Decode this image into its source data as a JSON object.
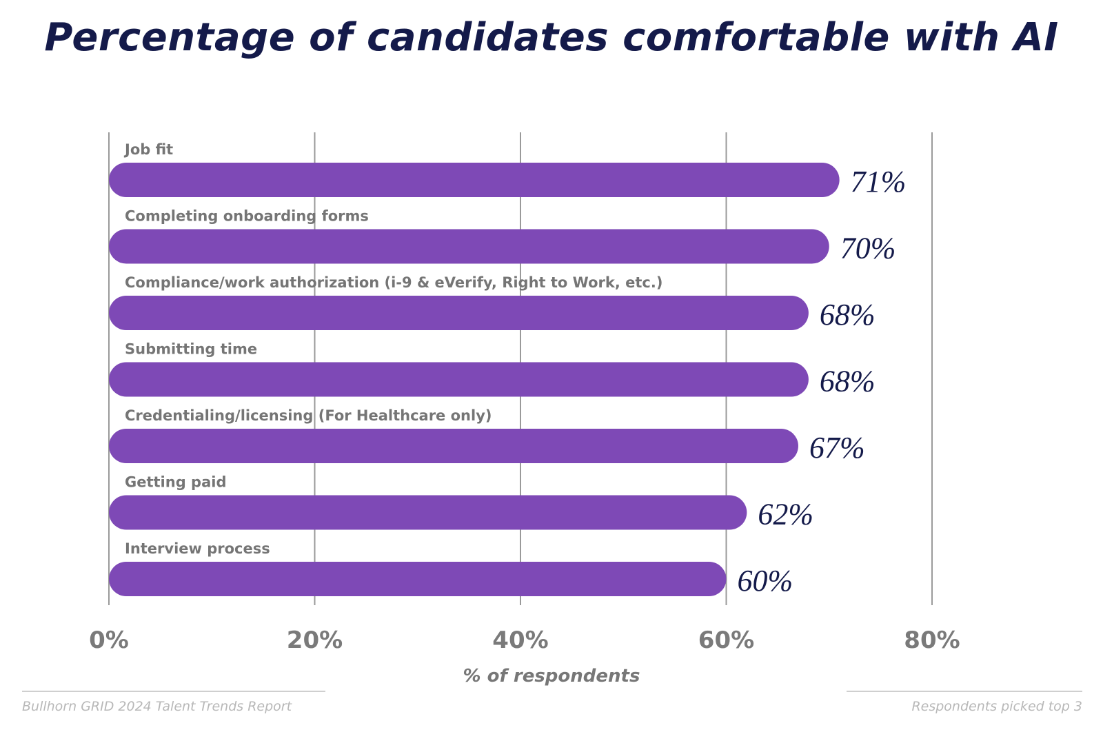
{
  "title": "Percentage of candidates comfortable with AI",
  "footer": {
    "source": "Bullhorn GRID 2024 Talent Trends Report",
    "note": "Respondents picked top 3"
  },
  "colors": {
    "bar": "#7e49b6",
    "title": "#141a4a",
    "value_label": "#141a4a",
    "category_label": "#757575",
    "gridline": "#9a9a9a",
    "tick_label": "#7a7a7a"
  },
  "chart_data": {
    "type": "bar",
    "orientation": "horizontal",
    "title": "Percentage of candidates comfortable with AI",
    "xlabel": "% of respondents",
    "ylabel": "",
    "xlim": [
      0,
      80
    ],
    "xticks": [
      0,
      20,
      40,
      60,
      80
    ],
    "xtick_labels": [
      "0%",
      "20%",
      "40%",
      "60%",
      "80%"
    ],
    "grid": true,
    "categories": [
      "Job fit",
      "Completing onboarding forms",
      "Compliance/work authorization (i-9 & eVerify, Right to Work, etc.)",
      "Submitting time",
      "Credentialing/licensing (For Healthcare only)",
      "Getting paid",
      "Interview process"
    ],
    "values": [
      71,
      70,
      68,
      68,
      67,
      62,
      60
    ],
    "value_labels": [
      "71%",
      "70%",
      "68%",
      "68%",
      "67%",
      "62%",
      "60%"
    ]
  }
}
